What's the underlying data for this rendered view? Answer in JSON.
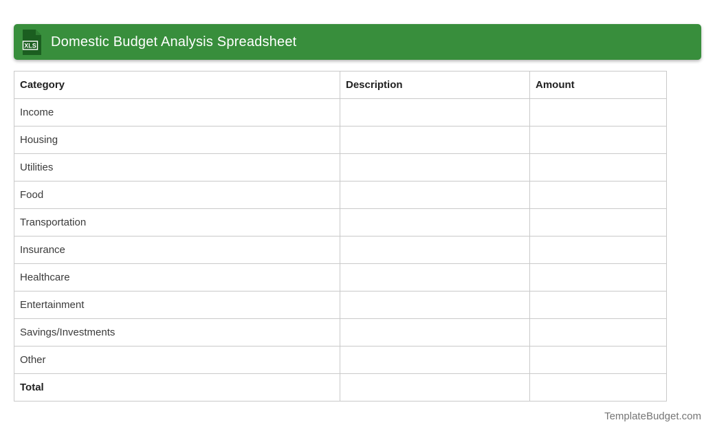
{
  "header": {
    "title": "Domestic Budget Analysis Spreadsheet",
    "file_badge": "XLS",
    "colors": {
      "bar": "#388E3C",
      "icon_body": "#1B5E20",
      "icon_fold": "#2E7D32",
      "badge_text": "#ffffff"
    }
  },
  "table": {
    "columns": [
      "Category",
      "Description",
      "Amount"
    ],
    "rows": [
      {
        "category": "Income",
        "description": "",
        "amount": ""
      },
      {
        "category": "Housing",
        "description": "",
        "amount": ""
      },
      {
        "category": "Utilities",
        "description": "",
        "amount": ""
      },
      {
        "category": "Food",
        "description": "",
        "amount": ""
      },
      {
        "category": "Transportation",
        "description": "",
        "amount": ""
      },
      {
        "category": "Insurance",
        "description": "",
        "amount": ""
      },
      {
        "category": "Healthcare",
        "description": "",
        "amount": ""
      },
      {
        "category": "Entertainment",
        "description": "",
        "amount": ""
      },
      {
        "category": "Savings/Investments",
        "description": "",
        "amount": ""
      },
      {
        "category": "Other",
        "description": "",
        "amount": ""
      },
      {
        "category": "Total",
        "description": "",
        "amount": "",
        "total": true
      }
    ]
  },
  "footer": {
    "credit": "TemplateBudget.com"
  }
}
